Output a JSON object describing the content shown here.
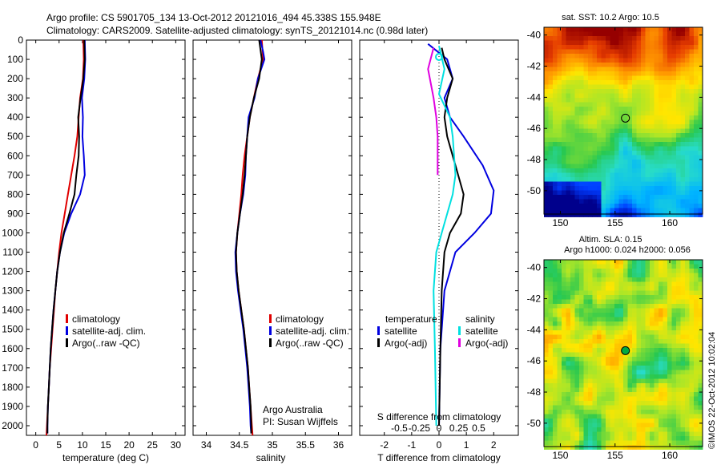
{
  "header": {
    "line1": "Argo profile: CS 5901705_134 13-Oct-2012 20121016_494 45.338S 155.948E",
    "line2": "Climatology: CARS2009. Satellite-adjusted climatology: synTS_20121014.nc (0.98d later)"
  },
  "colors": {
    "climatology": "#e00000",
    "satellite": "#0000e0",
    "argo": "#000000",
    "cyan": "#00e0e0",
    "magenta": "#e000e0"
  },
  "chart_data": [
    {
      "type": "line",
      "id": "temperature",
      "xlabel": "temperature (deg C)",
      "xlim": [
        -2,
        32
      ],
      "xticks": [
        0,
        5,
        10,
        15,
        20,
        25,
        30
      ],
      "ylim": [
        0,
        2050
      ],
      "yticks": [
        0,
        100,
        200,
        300,
        400,
        500,
        600,
        700,
        800,
        900,
        1000,
        1100,
        1200,
        1300,
        1400,
        1500,
        1600,
        1700,
        1800,
        1900,
        2000
      ],
      "legend": [
        "climatology",
        "satellite-adj. clim.",
        "Argo(..raw -QC)"
      ],
      "series": [
        {
          "name": "climatology",
          "color": "#e00000",
          "points": [
            [
              10.2,
              0
            ],
            [
              10.3,
              100
            ],
            [
              10.1,
              200
            ],
            [
              9.5,
              300
            ],
            [
              9.2,
              400
            ],
            [
              8.9,
              500
            ],
            [
              8.3,
              600
            ],
            [
              7.6,
              700
            ],
            [
              6.9,
              800
            ],
            [
              6.2,
              900
            ],
            [
              5.5,
              1000
            ],
            [
              5.0,
              1100
            ],
            [
              4.6,
              1200
            ],
            [
              4.2,
              1300
            ],
            [
              3.9,
              1400
            ],
            [
              3.6,
              1500
            ],
            [
              3.3,
              1600
            ],
            [
              3.0,
              1700
            ],
            [
              2.8,
              1800
            ],
            [
              2.6,
              1900
            ],
            [
              2.4,
              2000
            ],
            [
              2.3,
              2050
            ]
          ]
        },
        {
          "name": "satellite-adj. clim.",
          "color": "#0000e0",
          "points": [
            [
              10.5,
              0
            ],
            [
              10.6,
              100
            ],
            [
              10.4,
              200
            ],
            [
              9.9,
              300
            ],
            [
              10.1,
              400
            ],
            [
              10.0,
              500
            ],
            [
              10.3,
              600
            ],
            [
              10.5,
              700
            ],
            [
              9.5,
              800
            ],
            [
              7.6,
              900
            ],
            [
              6.1,
              1000
            ],
            [
              5.2,
              1100
            ],
            [
              4.6,
              1200
            ],
            [
              4.2,
              1300
            ],
            [
              3.8,
              1400
            ],
            [
              3.5,
              1500
            ],
            [
              3.2,
              1600
            ],
            [
              3.0,
              1700
            ],
            [
              2.8,
              1800
            ],
            [
              2.6,
              1900
            ],
            [
              2.5,
              2000
            ],
            [
              2.5,
              2040
            ]
          ]
        },
        {
          "name": "Argo(..raw -QC)",
          "color": "#000000",
          "points": [
            [
              10.4,
              0
            ],
            [
              10.5,
              100
            ],
            [
              10.2,
              200
            ],
            [
              9.6,
              300
            ],
            [
              9.1,
              400
            ],
            [
              9.3,
              500
            ],
            [
              9.2,
              600
            ],
            [
              8.7,
              700
            ],
            [
              8.3,
              800
            ],
            [
              7.2,
              900
            ],
            [
              6.0,
              1000
            ],
            [
              5.2,
              1100
            ],
            [
              4.6,
              1200
            ],
            [
              4.2,
              1300
            ],
            [
              3.8,
              1400
            ],
            [
              3.5,
              1500
            ],
            [
              3.2,
              1600
            ],
            [
              3.0,
              1700
            ],
            [
              2.8,
              1800
            ],
            [
              2.6,
              1900
            ],
            [
              2.5,
              2000
            ],
            [
              2.5,
              2040
            ]
          ]
        }
      ]
    },
    {
      "type": "line",
      "id": "salinity",
      "xlabel": "salinity",
      "xlim": [
        33.8,
        36.2
      ],
      "xticks": [
        34,
        34.5,
        35,
        35.5,
        36
      ],
      "ylim": [
        0,
        2050
      ],
      "legend": [
        "climatology",
        "satellite-adj. clim.",
        "Argo(..raw -QC)"
      ],
      "note": [
        "Argo Australia",
        "PI: Susan Wijffels"
      ],
      "series": [
        {
          "name": "climatology",
          "color": "#e00000",
          "points": [
            [
              34.84,
              0
            ],
            [
              34.86,
              100
            ],
            [
              34.78,
              200
            ],
            [
              34.72,
              300
            ],
            [
              34.66,
              400
            ],
            [
              34.62,
              500
            ],
            [
              34.58,
              600
            ],
            [
              34.55,
              700
            ],
            [
              34.53,
              800
            ],
            [
              34.5,
              900
            ],
            [
              34.47,
              1000
            ],
            [
              34.45,
              1100
            ],
            [
              34.46,
              1200
            ],
            [
              34.49,
              1300
            ],
            [
              34.53,
              1400
            ],
            [
              34.57,
              1500
            ],
            [
              34.6,
              1600
            ],
            [
              34.63,
              1700
            ],
            [
              34.65,
              1800
            ],
            [
              34.67,
              1900
            ],
            [
              34.69,
              2000
            ],
            [
              34.7,
              2050
            ]
          ]
        },
        {
          "name": "satellite-adj. clim.",
          "color": "#0000e0",
          "points": [
            [
              34.82,
              0
            ],
            [
              34.86,
              60
            ],
            [
              34.88,
              100
            ],
            [
              34.78,
              200
            ],
            [
              34.73,
              300
            ],
            [
              34.64,
              400
            ],
            [
              34.62,
              500
            ],
            [
              34.6,
              600
            ],
            [
              34.59,
              700
            ],
            [
              34.56,
              800
            ],
            [
              34.51,
              900
            ],
            [
              34.47,
              1000
            ],
            [
              34.44,
              1100
            ],
            [
              34.45,
              1200
            ],
            [
              34.48,
              1300
            ],
            [
              34.52,
              1400
            ],
            [
              34.56,
              1500
            ],
            [
              34.59,
              1600
            ],
            [
              34.62,
              1700
            ],
            [
              34.64,
              1800
            ],
            [
              34.66,
              1900
            ],
            [
              34.67,
              2000
            ],
            [
              34.68,
              2040
            ]
          ]
        },
        {
          "name": "Argo(..raw -QC)",
          "color": "#000000",
          "points": [
            [
              34.8,
              0
            ],
            [
              34.84,
              100
            ],
            [
              34.8,
              200
            ],
            [
              34.72,
              300
            ],
            [
              34.66,
              400
            ],
            [
              34.62,
              500
            ],
            [
              34.6,
              600
            ],
            [
              34.58,
              700
            ],
            [
              34.55,
              800
            ],
            [
              34.51,
              900
            ],
            [
              34.47,
              1000
            ],
            [
              34.45,
              1100
            ],
            [
              34.46,
              1200
            ],
            [
              34.49,
              1300
            ],
            [
              34.53,
              1400
            ],
            [
              34.57,
              1500
            ],
            [
              34.6,
              1600
            ],
            [
              34.63,
              1700
            ],
            [
              34.65,
              1800
            ],
            [
              34.67,
              1900
            ],
            [
              34.68,
              2000
            ],
            [
              34.68,
              2040
            ]
          ]
        }
      ]
    },
    {
      "type": "line",
      "id": "difference",
      "xlabel": "T difference from climatology",
      "top_label": "S difference from climatology",
      "xlim": [
        -2.9,
        2.9
      ],
      "xticks": [
        -2,
        -1,
        0,
        1,
        2
      ],
      "xticks_s": [
        "-0.5",
        "-0.25",
        "0",
        "0.25",
        "0.5"
      ],
      "ylim": [
        0,
        2050
      ],
      "legend_temperature": {
        "title": "temperature",
        "items": [
          "satellite",
          "Argo(-adj)"
        ]
      },
      "legend_salinity": {
        "title": "salinity",
        "items": [
          "satellite",
          "Argo(-adj)"
        ]
      },
      "series": [
        {
          "name": "temperature satellite",
          "color": "#0000e0",
          "points": [
            [
              -0.4,
              20
            ],
            [
              0.3,
              100
            ],
            [
              0.5,
              200
            ],
            [
              0.2,
              300
            ],
            [
              0.4,
              400
            ],
            [
              0.9,
              500
            ],
            [
              1.6,
              650
            ],
            [
              2.0,
              780
            ],
            [
              1.9,
              900
            ],
            [
              1.3,
              1000
            ],
            [
              0.6,
              1100
            ],
            [
              0.2,
              1300
            ],
            [
              0.05,
              1600
            ],
            [
              0,
              2000
            ]
          ]
        },
        {
          "name": "temperature Argo(-adj)",
          "color": "#000000",
          "points": [
            [
              0.1,
              40
            ],
            [
              0.2,
              100
            ],
            [
              0.5,
              200
            ],
            [
              0.3,
              300
            ],
            [
              0.2,
              400
            ],
            [
              0.3,
              500
            ],
            [
              0.6,
              650
            ],
            [
              0.9,
              800
            ],
            [
              0.8,
              900
            ],
            [
              0.4,
              1000
            ],
            [
              0.2,
              1100
            ],
            [
              0.1,
              1300
            ],
            [
              0.05,
              1600
            ],
            [
              0,
              2000
            ]
          ]
        },
        {
          "name": "salinity satellite",
          "color": "#00e0e0",
          "points": [
            [
              0,
              30
            ],
            [
              0.2,
              150
            ],
            [
              0,
              280
            ],
            [
              0.4,
              400
            ],
            [
              0.5,
              500
            ],
            [
              0.6,
              700
            ],
            [
              0.5,
              800
            ],
            [
              0.2,
              950
            ],
            [
              -0.1,
              1100
            ],
            [
              -0.2,
              1300
            ],
            [
              -0.15,
              1600
            ],
            [
              -0.1,
              2000
            ]
          ]
        },
        {
          "name": "salinity Argo(-adj)",
          "color": "#e000e0",
          "points": [
            [
              -0.2,
              40
            ],
            [
              -0.4,
              150
            ],
            [
              -0.2,
              300
            ],
            [
              -0.1,
              400
            ],
            [
              -0.05,
              500
            ],
            [
              -0.05,
              700
            ]
          ]
        }
      ]
    },
    {
      "type": "heatmap",
      "id": "sst-map",
      "title": "sat. SST: 10.2  Argo: 10.5",
      "xlim": [
        148.5,
        163
      ],
      "ylim": [
        -51.5,
        -39.5
      ],
      "xticks": [
        150,
        155,
        160
      ],
      "yticks": [
        -40,
        -42,
        -44,
        -46,
        -48,
        -50
      ],
      "marker": {
        "lon": 155.948,
        "lat": -45.338
      }
    },
    {
      "type": "heatmap",
      "id": "sla-map",
      "title": "Altim. SLA: 0.15",
      "subtitle": "Argo h1000: 0.024  h2000: 0.056",
      "xlim": [
        148.5,
        163
      ],
      "ylim": [
        -51.5,
        -39.5
      ],
      "xticks": [
        150,
        155,
        160
      ],
      "yticks": [
        -40,
        -42,
        -44,
        -46,
        -48,
        -50
      ],
      "marker": {
        "lon": 155.948,
        "lat": -45.338
      }
    }
  ],
  "credit": "©IMOS 22-Oct-2012 10:02:04"
}
